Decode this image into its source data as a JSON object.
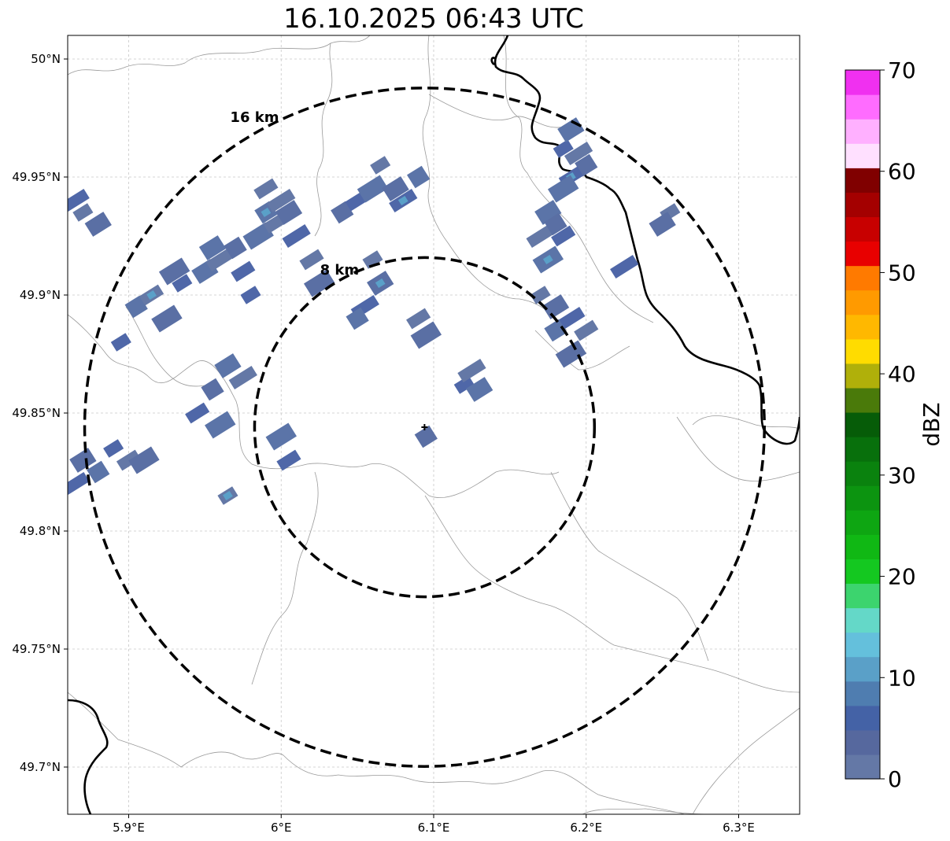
{
  "title": "16.10.2025 06:43 UTC",
  "map": {
    "lon_range": [
      5.86,
      6.34
    ],
    "lat_range": [
      49.68,
      50.01
    ],
    "lat_ticks": [
      {
        "value": 50.0,
        "label": "50°N"
      },
      {
        "value": 49.95,
        "label": "49.95°N"
      },
      {
        "value": 49.9,
        "label": "49.9°N"
      },
      {
        "value": 49.85,
        "label": "49.85°N"
      },
      {
        "value": 49.8,
        "label": "49.8°N"
      },
      {
        "value": 49.75,
        "label": "49.75°N"
      },
      {
        "value": 49.7,
        "label": "49.7°N"
      }
    ],
    "lon_ticks": [
      {
        "value": 5.9,
        "label": "5.9°E"
      },
      {
        "value": 6.0,
        "label": "6°E"
      },
      {
        "value": 6.1,
        "label": "6.1°E"
      },
      {
        "value": 6.2,
        "label": "6.2°E"
      },
      {
        "value": 6.3,
        "label": "6.3°E"
      }
    ],
    "grid": true,
    "radar_site": {
      "lon": 6.094,
      "lat": 49.844
    },
    "range_rings": [
      {
        "radius_km": 8,
        "label": "8 km"
      },
      {
        "radius_km": 16,
        "label": "16 km"
      }
    ]
  },
  "colorbar": {
    "label": "dBZ",
    "min": 0,
    "max": 70,
    "tick_labels": [
      "0",
      "10",
      "20",
      "30",
      "40",
      "50",
      "60",
      "70"
    ],
    "colors": [
      "#6478a6",
      "#56689e",
      "#4462a6",
      "#4f7db0",
      "#5aa0c8",
      "#64c0dc",
      "#64d8c8",
      "#3cd46e",
      "#14c820",
      "#10b814",
      "#0ea612",
      "#0c9410",
      "#0a820e",
      "#08700c",
      "#065c08",
      "#4a7a0a",
      "#b0b00a",
      "#ffdc00",
      "#ffb800",
      "#ff9a00",
      "#ff7a00",
      "#e80000",
      "#c80000",
      "#a40000",
      "#800000",
      "#ffe0ff",
      "#ffb0ff",
      "#ff6cff",
      "#f030f0"
    ]
  },
  "echo_cells": [
    [
      5.87,
      49.935
    ],
    [
      5.88,
      49.93
    ],
    [
      5.865,
      49.94
    ],
    [
      5.905,
      49.895
    ],
    [
      5.915,
      49.9
    ],
    [
      5.925,
      49.89
    ],
    [
      5.935,
      49.905
    ],
    [
      5.95,
      49.91
    ],
    [
      5.96,
      49.915
    ],
    [
      5.97,
      49.92
    ],
    [
      5.975,
      49.91
    ],
    [
      5.985,
      49.925
    ],
    [
      5.995,
      49.93
    ],
    [
      6.005,
      49.935
    ],
    [
      6.01,
      49.925
    ],
    [
      5.99,
      49.935
    ],
    [
      6.02,
      49.915
    ],
    [
      6.025,
      49.905
    ],
    [
      5.98,
      49.9
    ],
    [
      5.955,
      49.92
    ],
    [
      6.0,
      49.94
    ],
    [
      6.04,
      49.935
    ],
    [
      6.05,
      49.94
    ],
    [
      6.06,
      49.945
    ],
    [
      6.065,
      49.955
    ],
    [
      6.075,
      49.945
    ],
    [
      6.08,
      49.94
    ],
    [
      6.09,
      49.95
    ],
    [
      5.99,
      49.945
    ],
    [
      5.93,
      49.91
    ],
    [
      5.895,
      49.88
    ],
    [
      5.965,
      49.87
    ],
    [
      5.975,
      49.865
    ],
    [
      5.955,
      49.86
    ],
    [
      5.945,
      49.85
    ],
    [
      5.96,
      49.845
    ],
    [
      6.06,
      49.915
    ],
    [
      6.065,
      49.905
    ],
    [
      6.055,
      49.895
    ],
    [
      6.05,
      49.89
    ],
    [
      6.09,
      49.89
    ],
    [
      6.095,
      49.883
    ],
    [
      6.12,
      49.862
    ],
    [
      6.13,
      49.86
    ],
    [
      6.125,
      49.868
    ],
    [
      6.095,
      49.84
    ],
    [
      6.005,
      49.83
    ],
    [
      6.0,
      49.84
    ],
    [
      5.965,
      49.815
    ],
    [
      5.87,
      49.83
    ],
    [
      5.865,
      49.82
    ],
    [
      5.88,
      49.825
    ],
    [
      5.9,
      49.83
    ],
    [
      5.91,
      49.83
    ],
    [
      5.89,
      49.835
    ],
    [
      6.175,
      49.935
    ],
    [
      6.17,
      49.925
    ],
    [
      6.18,
      49.93
    ],
    [
      6.185,
      49.925
    ],
    [
      6.175,
      49.915
    ],
    [
      6.17,
      49.9
    ],
    [
      6.18,
      49.895
    ],
    [
      6.19,
      49.89
    ],
    [
      6.18,
      49.885
    ],
    [
      6.2,
      49.885
    ],
    [
      6.19,
      49.875
    ],
    [
      6.185,
      49.962
    ],
    [
      6.19,
      49.97
    ],
    [
      6.195,
      49.96
    ],
    [
      6.2,
      49.955
    ],
    [
      6.19,
      49.95
    ],
    [
      6.185,
      49.945
    ],
    [
      6.255,
      49.935
    ],
    [
      6.25,
      49.93
    ],
    [
      6.225,
      49.912
    ]
  ]
}
